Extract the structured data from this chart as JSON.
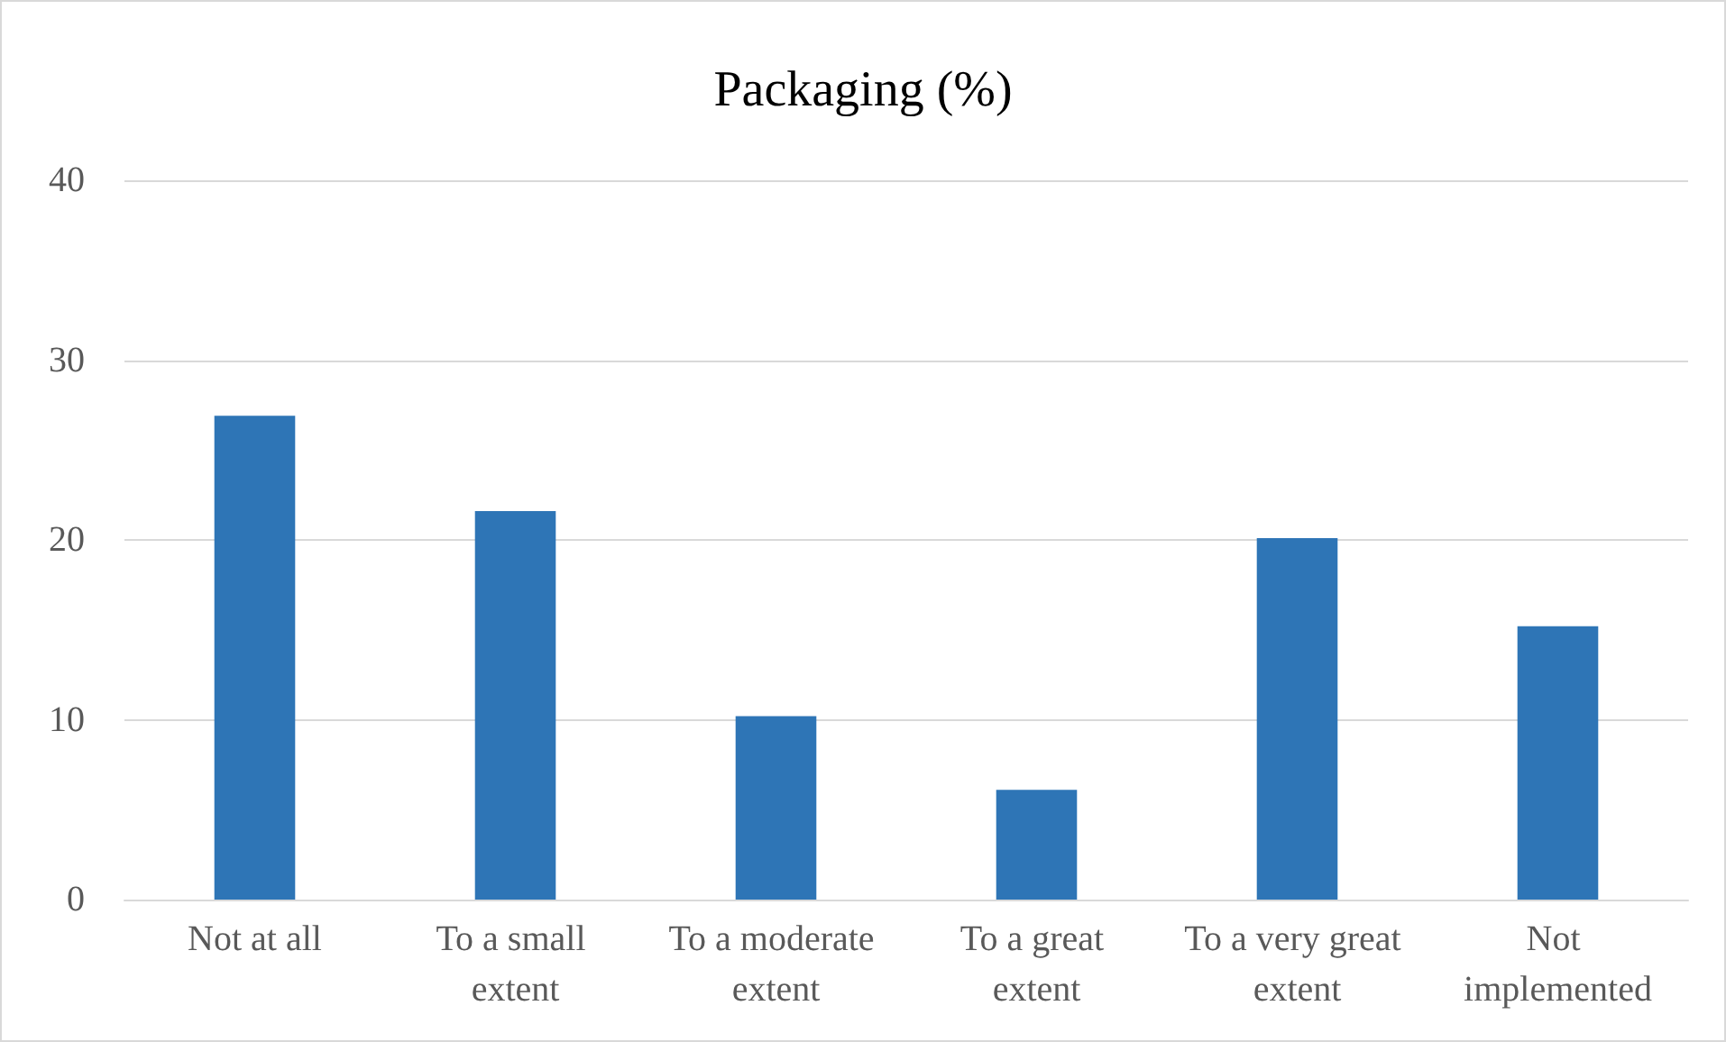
{
  "chart_data": {
    "type": "bar",
    "title": "Packaging (%)",
    "categories": [
      "Not at all",
      "To a small extent",
      "To a moderate extent",
      "To a great extent",
      "To a very great extent",
      "Not implemented"
    ],
    "values": [
      26.9,
      21.6,
      10.2,
      6.1,
      20.1,
      15.2
    ],
    "color": "#2e75b6",
    "ylim": [
      0,
      40
    ],
    "yticks": [
      0,
      10,
      20,
      30,
      40
    ],
    "grid": "y"
  }
}
